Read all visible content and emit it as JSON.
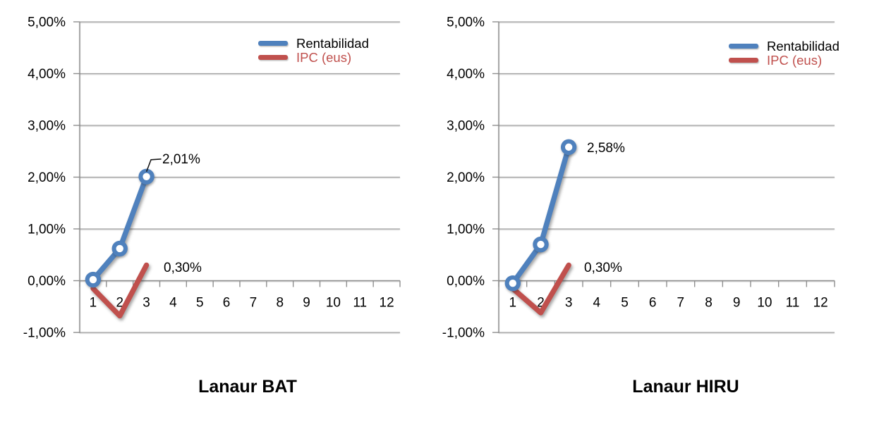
{
  "chart_data": [
    {
      "type": "line",
      "title": "Lanaur BAT",
      "categories": [
        "1",
        "2",
        "3",
        "4",
        "5",
        "6",
        "7",
        "8",
        "9",
        "10",
        "11",
        "12"
      ],
      "series": [
        {
          "name": "Rentabilidad",
          "color": "#4F81BD",
          "legend_text_color": "#000000",
          "marker": "circle",
          "values": [
            0.02,
            0.62,
            2.01
          ],
          "end_label": "2,01%"
        },
        {
          "name": "IPC (eus)",
          "color": "#C0504D",
          "legend_text_color": "#C0504D",
          "marker": "none",
          "values": [
            -0.15,
            -0.68,
            0.3
          ],
          "end_label": "0,30%"
        }
      ],
      "ylim": [
        -1,
        5
      ],
      "ytick_labels": [
        "5,00%",
        "4,00%",
        "3,00%",
        "2,00%",
        "1,00%",
        "0,00%",
        "-1,00%"
      ],
      "grid": "horizontal",
      "legend_position": "top-right"
    },
    {
      "type": "line",
      "title": "Lanaur HIRU",
      "categories": [
        "1",
        "2",
        "3",
        "4",
        "5",
        "6",
        "7",
        "8",
        "9",
        "10",
        "11",
        "12"
      ],
      "series": [
        {
          "name": "Rentabilidad",
          "color": "#4F81BD",
          "legend_text_color": "#000000",
          "marker": "circle",
          "values": [
            -0.05,
            0.7,
            2.58
          ],
          "end_label": "2,58%"
        },
        {
          "name": "IPC (eus)",
          "color": "#C0504D",
          "legend_text_color": "#C0504D",
          "marker": "none",
          "values": [
            -0.15,
            -0.62,
            0.3
          ],
          "end_label": "0,30%"
        }
      ],
      "ylim": [
        -1,
        5
      ],
      "ytick_labels": [
        "5,00%",
        "4,00%",
        "3,00%",
        "2,00%",
        "1,00%",
        "0,00%",
        "-1,00%"
      ],
      "grid": "horizontal",
      "legend_position": "top-right"
    }
  ]
}
